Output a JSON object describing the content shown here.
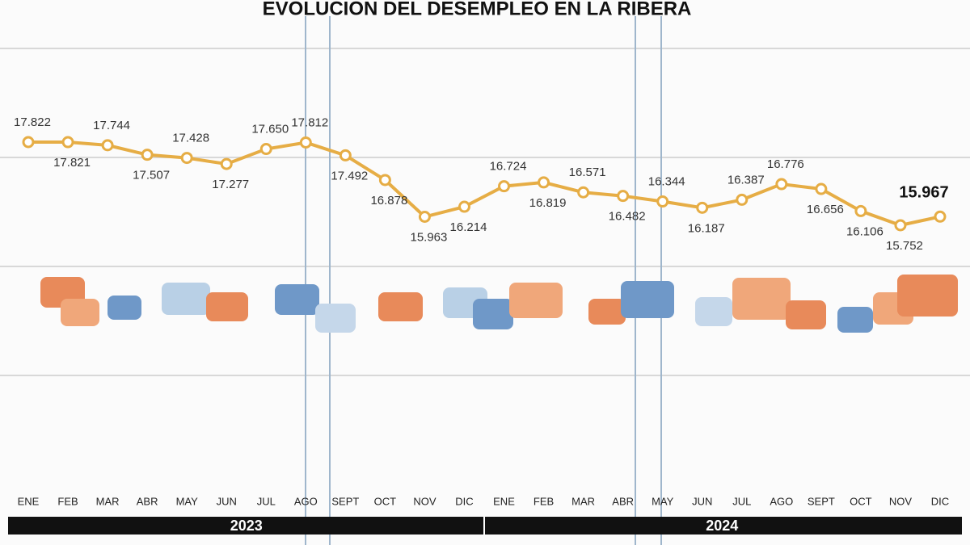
{
  "chart_data": {
    "type": "line",
    "title": "EVOLUCION DEL DESEMPLEO EN LA RIBERA",
    "categories": [
      "ENE",
      "FEB",
      "MAR",
      "ABR",
      "MAY",
      "JUN",
      "JUL",
      "AGO",
      "SEPT",
      "OCT",
      "NOV",
      "DIC",
      "ENE",
      "FEB",
      "MAR",
      "ABR",
      "MAY",
      "JUN",
      "JUL",
      "AGO",
      "SEPT",
      "OCT",
      "NOV",
      "DIC"
    ],
    "groups": [
      "2023",
      "2024"
    ],
    "color": "#e6ad45",
    "values": [
      17822,
      17821,
      17744,
      17507,
      17428,
      17277,
      17650,
      17812,
      17492,
      16878,
      15963,
      16214,
      16724,
      16819,
      16571,
      16482,
      16344,
      16187,
      16387,
      16776,
      16656,
      16106,
      15752,
      15967
    ],
    "value_labels": [
      "17.822",
      "17.821",
      "17.744",
      "17.507",
      "17.428",
      "17.277",
      "17.650",
      "17.812",
      "17.492",
      "16.878",
      "15.963",
      "16.214",
      "16.724",
      "16.819",
      "16.571",
      "16.482",
      "16.344",
      "16.187",
      "16.387",
      "16.776",
      "16.656",
      "16.106",
      "15.752",
      "15.967"
    ]
  }
}
